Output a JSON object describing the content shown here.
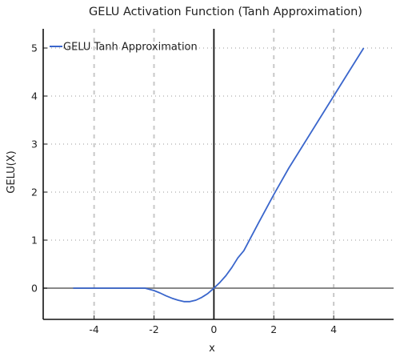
{
  "chart_data": {
    "type": "line",
    "title": "GELU Activation Function (Tanh Approximation)",
    "xlabel": "x",
    "ylabel": "GELU(X)",
    "xlim": [
      -5.7,
      6.0
    ],
    "ylim": [
      -0.65,
      5.4
    ],
    "xticks": [
      -4,
      -2,
      0,
      2,
      4
    ],
    "yticks": [
      0,
      1,
      2,
      3,
      4,
      5
    ],
    "grid": "dotted",
    "legend_position": "top-left",
    "series": [
      {
        "name": "GELU Tanh Approximation",
        "color": "#3a66cc",
        "x": [
          -4.7,
          -4.0,
          -3.0,
          -2.3,
          -2.0,
          -1.8,
          -1.6,
          -1.4,
          -1.2,
          -1.0,
          -0.8,
          -0.6,
          -0.4,
          -0.2,
          0.0,
          0.2,
          0.4,
          0.6,
          0.8,
          1.0,
          1.5,
          2.0,
          2.5,
          3.0,
          3.5,
          4.0,
          4.5,
          5.0
        ],
        "y": [
          0.0,
          0.0,
          0.0,
          0.0,
          -0.05,
          -0.1,
          -0.16,
          -0.21,
          -0.25,
          -0.28,
          -0.28,
          -0.25,
          -0.19,
          -0.11,
          0.0,
          0.12,
          0.26,
          0.43,
          0.63,
          0.78,
          1.37,
          1.95,
          2.5,
          3.0,
          3.5,
          4.0,
          4.5,
          5.0
        ]
      }
    ]
  }
}
